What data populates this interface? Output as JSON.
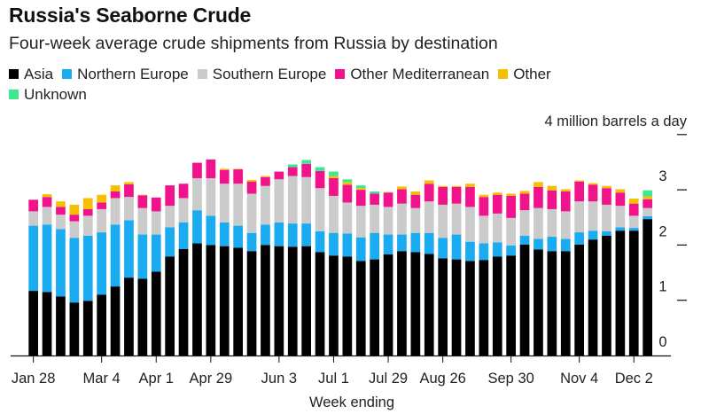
{
  "chart_data": {
    "type": "bar",
    "stacked": true,
    "title": "Russia's Seaborne Crude",
    "subtitle": "Four-week average crude shipments from Russia by destination",
    "xlabel": "Week ending",
    "ylabel": "",
    "unit_label": "4 million barrels a day",
    "ylim": [
      0,
      4
    ],
    "yticks": [
      0,
      1,
      2,
      3,
      4
    ],
    "ytick_labels": [
      "0",
      "1",
      "2",
      "3",
      "4 million barrels a day"
    ],
    "legend_position": "top",
    "grid": false,
    "xtick_labels": [
      "Jan 28",
      "Mar 4",
      "Apr 1",
      "Apr 29",
      "Jun 3",
      "Jul 1",
      "Jul 29",
      "Aug 26",
      "Sep 30",
      "Nov 4",
      "Dec 2"
    ],
    "categories": [
      "Jan 28",
      "Feb 4",
      "Feb 11",
      "Feb 18",
      "Feb 25",
      "Mar 4",
      "Mar 11",
      "Mar 18",
      "Mar 25",
      "Apr 1",
      "Apr 8",
      "Apr 15",
      "Apr 22",
      "Apr 29",
      "May 6",
      "May 13",
      "May 20",
      "May 27",
      "Jun 3",
      "Jun 10",
      "Jun 17",
      "Jun 24",
      "Jul 1",
      "Jul 8",
      "Jul 15",
      "Jul 22",
      "Jul 29",
      "Aug 5",
      "Aug 12",
      "Aug 19",
      "Aug 26",
      "Sep 2",
      "Sep 9",
      "Sep 16",
      "Sep 23",
      "Sep 30",
      "Oct 7",
      "Oct 14",
      "Oct 21",
      "Oct 28",
      "Nov 4",
      "Nov 11",
      "Nov 18",
      "Nov 25",
      "Dec 2",
      "Dec 9"
    ],
    "series": [
      {
        "name": "Asia",
        "color": "#000000",
        "values": [
          1.17,
          1.15,
          1.07,
          0.96,
          0.99,
          1.1,
          1.25,
          1.41,
          1.39,
          1.52,
          1.79,
          1.93,
          2.03,
          2.0,
          1.98,
          1.95,
          1.89,
          2.0,
          1.98,
          1.97,
          1.98,
          1.87,
          1.81,
          1.79,
          1.71,
          1.74,
          1.83,
          1.89,
          1.87,
          1.84,
          1.76,
          1.74,
          1.71,
          1.73,
          1.79,
          1.81,
          2.01,
          1.92,
          1.89,
          1.89,
          2.01,
          2.1,
          2.17,
          2.26,
          2.26,
          2.47
        ]
      },
      {
        "name": "Northern Europe",
        "color": "#1aabf0",
        "values": [
          1.18,
          1.22,
          1.22,
          1.17,
          1.18,
          1.13,
          1.12,
          1.04,
          0.8,
          0.67,
          0.53,
          0.48,
          0.6,
          0.53,
          0.43,
          0.4,
          0.33,
          0.37,
          0.43,
          0.42,
          0.41,
          0.38,
          0.41,
          0.42,
          0.43,
          0.48,
          0.36,
          0.3,
          0.35,
          0.38,
          0.37,
          0.45,
          0.35,
          0.3,
          0.26,
          0.18,
          0.16,
          0.19,
          0.26,
          0.22,
          0.22,
          0.16,
          0.08,
          0.06,
          0.05,
          0.05
        ]
      },
      {
        "name": "Southern Europe",
        "color": "#cbcbcb",
        "values": [
          0.26,
          0.32,
          0.26,
          0.3,
          0.36,
          0.42,
          0.48,
          0.42,
          0.48,
          0.42,
          0.39,
          0.44,
          0.58,
          0.68,
          0.7,
          0.76,
          0.71,
          0.7,
          0.78,
          0.86,
          0.84,
          0.78,
          0.67,
          0.56,
          0.57,
          0.51,
          0.5,
          0.56,
          0.45,
          0.57,
          0.6,
          0.56,
          0.63,
          0.5,
          0.52,
          0.5,
          0.46,
          0.56,
          0.5,
          0.5,
          0.56,
          0.53,
          0.48,
          0.39,
          0.22,
          0.15
        ]
      },
      {
        "name": "Other Mediterranean",
        "color": "#f0138c",
        "values": [
          0.21,
          0.18,
          0.14,
          0.12,
          0.12,
          0.12,
          0.12,
          0.23,
          0.23,
          0.25,
          0.37,
          0.26,
          0.28,
          0.34,
          0.25,
          0.26,
          0.22,
          0.16,
          0.14,
          0.16,
          0.24,
          0.31,
          0.32,
          0.32,
          0.29,
          0.2,
          0.26,
          0.26,
          0.24,
          0.32,
          0.32,
          0.3,
          0.36,
          0.34,
          0.34,
          0.4,
          0.3,
          0.38,
          0.34,
          0.36,
          0.36,
          0.3,
          0.3,
          0.24,
          0.22,
          0.16
        ]
      },
      {
        "name": "Other",
        "color": "#f6bf00",
        "values": [
          0,
          0.05,
          0.1,
          0.18,
          0.2,
          0.14,
          0.11,
          0.04,
          0.01,
          0,
          0,
          0,
          0,
          0,
          0.02,
          0.01,
          0.03,
          0.02,
          0,
          0,
          0,
          0,
          0.04,
          0.05,
          0.03,
          0,
          0.01,
          0.05,
          0.06,
          0.06,
          0.02,
          0.02,
          0.06,
          0.04,
          0.04,
          0.04,
          0.05,
          0.09,
          0.08,
          0.04,
          0.02,
          0.03,
          0.04,
          0.06,
          0.09,
          0.05
        ]
      },
      {
        "name": "Unknown",
        "color": "#3ee893",
        "values": [
          0,
          0,
          0,
          0,
          0,
          0,
          0,
          0,
          0,
          0,
          0,
          0,
          0,
          0,
          0,
          0,
          0,
          0,
          0,
          0.05,
          0.07,
          0.07,
          0.08,
          0.05,
          0.05,
          0.04,
          0,
          0,
          0,
          0,
          0,
          0,
          0,
          0,
          0,
          0,
          0,
          0,
          0,
          0,
          0,
          0,
          0,
          0,
          0,
          0.11
        ]
      }
    ]
  }
}
